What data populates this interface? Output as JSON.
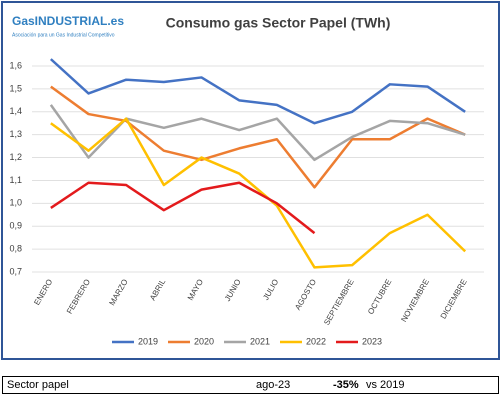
{
  "chart_data": {
    "type": "line",
    "title": "Consumo gas Sector Papel (TWh)",
    "logo": "GasINDUSTRIAL.es",
    "logo_subtitle": "Asociación para un Gas Industrial Competitivo",
    "categories": [
      "ENERO",
      "FEBRERO",
      "MARZO",
      "ABRIL",
      "MAYO",
      "JUNIO",
      "JULIO",
      "AGOSTO",
      "SEPTIEMBRE",
      "OCTUBRE",
      "NOVIEMBRE",
      "DICIEMBRE"
    ],
    "series": [
      {
        "name": "2019",
        "color": "#4472c4",
        "values": [
          1.63,
          1.48,
          1.54,
          1.53,
          1.55,
          1.45,
          1.43,
          1.35,
          1.4,
          1.52,
          1.51,
          1.4
        ]
      },
      {
        "name": "2020",
        "color": "#ed7d31",
        "values": [
          1.51,
          1.39,
          1.36,
          1.23,
          1.19,
          1.24,
          1.28,
          1.07,
          1.28,
          1.28,
          1.37,
          1.3
        ]
      },
      {
        "name": "2021",
        "color": "#a5a5a5",
        "values": [
          1.43,
          1.2,
          1.37,
          1.33,
          1.37,
          1.32,
          1.37,
          1.19,
          1.29,
          1.36,
          1.35,
          1.3
        ]
      },
      {
        "name": "2022",
        "color": "#ffc000",
        "values": [
          1.35,
          1.23,
          1.37,
          1.08,
          1.2,
          1.13,
          0.99,
          0.72,
          0.73,
          0.87,
          0.95,
          0.79
        ]
      },
      {
        "name": "2023",
        "color": "#e31a1c",
        "values": [
          0.98,
          1.09,
          1.08,
          0.97,
          1.06,
          1.09,
          1.0,
          0.87,
          null,
          null,
          null,
          null
        ]
      }
    ],
    "ylim": [
      0.7,
      1.6
    ],
    "yticks": [
      {
        "value": 0.7,
        "label": "0,7"
      },
      {
        "value": 0.8,
        "label": "0,8"
      },
      {
        "value": 0.9,
        "label": "0,9"
      },
      {
        "value": 1.0,
        "label": "1,0"
      },
      {
        "value": 1.1,
        "label": "1,1"
      },
      {
        "value": 1.2,
        "label": "1,2"
      },
      {
        "value": 1.3,
        "label": "1,3"
      },
      {
        "value": 1.4,
        "label": "1,4"
      },
      {
        "value": 1.5,
        "label": "1,5"
      },
      {
        "value": 1.6,
        "label": "1,6"
      }
    ],
    "grid": true,
    "legend": "bottom"
  },
  "footer": {
    "label": "Sector papel",
    "period": "ago-23",
    "change": "-35%",
    "comparison": "vs 2019"
  }
}
